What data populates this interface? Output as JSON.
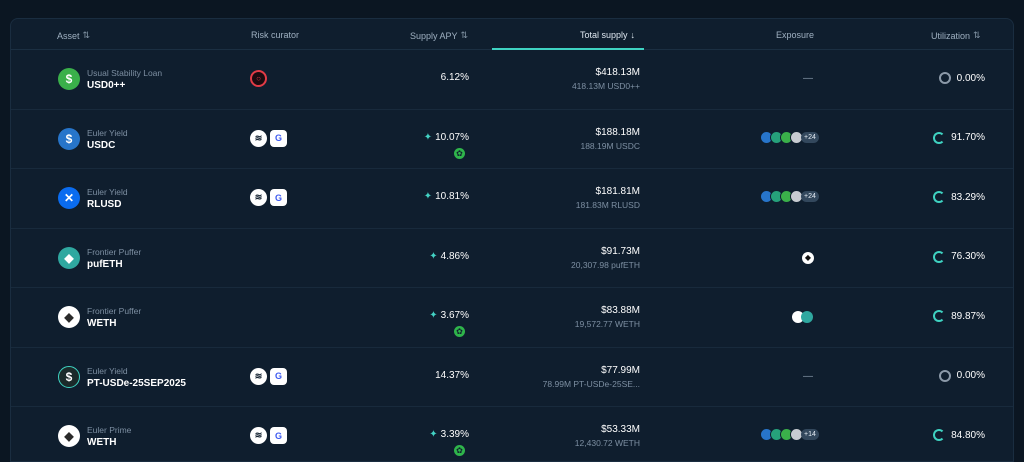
{
  "columns": {
    "asset": "Asset",
    "risk_curator": "Risk curator",
    "supply_apy": "Supply APY",
    "total_supply": "Total supply",
    "exposure": "Exposure",
    "utilization": "Utilization"
  },
  "rows": [
    {
      "sub": "Usual Stability Loan",
      "name": "USD0++",
      "icon_color": "#3ab04a",
      "icon_glyph": "$",
      "curators": [
        "ring"
      ],
      "apy": "6.12%",
      "apy_boost": false,
      "apy_reward": false,
      "supply_usd": "$418.13M",
      "supply_amount": "418.13M USD0++",
      "exposure": "—",
      "exposure_type": "dash",
      "utilization": "0.00%",
      "util_active": false
    },
    {
      "sub": "Euler Yield",
      "name": "USDC",
      "icon_color": "#2775ca",
      "icon_glyph": "$",
      "curators": [
        "stripes",
        "gbox"
      ],
      "apy": "10.07%",
      "apy_boost": true,
      "apy_reward": true,
      "supply_usd": "$188.18M",
      "supply_amount": "188.19M USDC",
      "exposure": "+24",
      "exposure_type": "multi",
      "utilization": "91.70%",
      "util_active": true
    },
    {
      "sub": "Euler Yield",
      "name": "RLUSD",
      "icon_color": "#0a6cf0",
      "icon_glyph": "✕",
      "curators": [
        "stripes",
        "gbox"
      ],
      "apy": "10.81%",
      "apy_boost": true,
      "apy_reward": false,
      "supply_usd": "$181.81M",
      "supply_amount": "181.83M RLUSD",
      "exposure": "+24",
      "exposure_type": "multi",
      "utilization": "83.29%",
      "util_active": true
    },
    {
      "sub": "Frontier Puffer",
      "name": "pufETH",
      "icon_color": "#2fa8a0",
      "icon_glyph": "◆",
      "curators": [],
      "apy": "4.86%",
      "apy_boost": true,
      "apy_reward": false,
      "supply_usd": "$91.73M",
      "supply_amount": "20,307.98 pufETH",
      "exposure": "",
      "exposure_type": "single",
      "utilization": "76.30%",
      "util_active": true
    },
    {
      "sub": "Frontier Puffer",
      "name": "WETH",
      "icon_color": "#ffffff",
      "icon_glyph": "◆",
      "curators": [],
      "apy": "3.67%",
      "apy_boost": true,
      "apy_reward": true,
      "supply_usd": "$83.88M",
      "supply_amount": "19,572.77 WETH",
      "exposure": "",
      "exposure_type": "pair",
      "utilization": "89.87%",
      "util_active": true
    },
    {
      "sub": "Euler Yield",
      "name": "PT-USDe-25SEP2025",
      "icon_color": "#1b2a2a",
      "icon_glyph": "$",
      "curators": [
        "stripes",
        "gbox"
      ],
      "apy": "14.37%",
      "apy_boost": false,
      "apy_reward": false,
      "supply_usd": "$77.99M",
      "supply_amount": "78.99M PT-USDe-25SE...",
      "exposure": "—",
      "exposure_type": "dash",
      "utilization": "0.00%",
      "util_active": false,
      "warning": true
    },
    {
      "sub": "Euler Prime",
      "name": "WETH",
      "icon_color": "#ffffff",
      "icon_glyph": "◆",
      "curators": [
        "stripes",
        "gbox"
      ],
      "apy": "3.39%",
      "apy_boost": true,
      "apy_reward": true,
      "supply_usd": "$53.33M",
      "supply_amount": "12,430.72 WETH",
      "exposure": "+14",
      "exposure_type": "multi",
      "utilization": "84.80%",
      "util_active": true
    }
  ],
  "icons": {
    "sort": "⇅",
    "sort_desc": "↓",
    "warning": "⚠",
    "boost": "✦",
    "reward": "✿"
  },
  "colors": {
    "accent": "#3fd3c2",
    "background": "#0b1622",
    "panel": "#0f1e2e"
  }
}
